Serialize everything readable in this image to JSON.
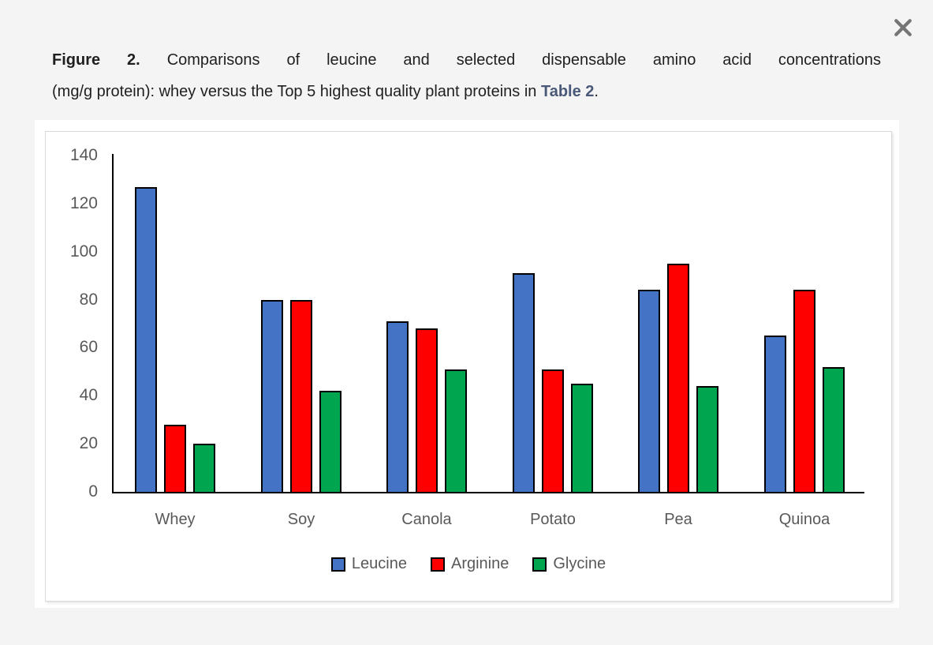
{
  "caption": {
    "label": "Figure 2.",
    "line1_rest": "Comparisons of leucine and selected dispensable amino acid concentrations",
    "line2_prefix": "(mg/g protein): whey versus the Top 5 highest quality plant proteins in ",
    "link_text": "Table 2",
    "suffix": "."
  },
  "icons": {
    "close": "✕"
  },
  "colors": {
    "page_bg": "#F4F4F5",
    "panel_bg": "#FFFFFF",
    "chart_border": "#D9D9D9",
    "caption_text": "#1F1F1F",
    "link_text_color": "#4A5878",
    "close_icon": "#757575",
    "axis_line": "#000000",
    "tick_label": "#595959",
    "bar_border": "#000000"
  },
  "chart_data": {
    "type": "bar",
    "title": "",
    "xlabel": "",
    "ylabel": "",
    "categories": [
      "Whey",
      "Soy",
      "Canola",
      "Potato",
      "Pea",
      "Quinoa"
    ],
    "series": [
      {
        "name": "Leucine",
        "color": "#4472C4",
        "values": [
          127,
          80,
          71,
          91,
          84,
          65
        ]
      },
      {
        "name": "Arginine",
        "color": "#FF0000",
        "values": [
          28,
          80,
          68,
          51,
          95,
          84
        ]
      },
      {
        "name": "Glycine",
        "color": "#00A550",
        "values": [
          20,
          42,
          51,
          45,
          44,
          52
        ]
      }
    ],
    "ylim": [
      0,
      140
    ],
    "yticks": [
      0,
      20,
      40,
      60,
      80,
      100,
      120,
      140
    ],
    "grid": false,
    "legend_position": "bottom",
    "legend_labels": [
      "Leucine",
      "Arginine",
      "Glycine"
    ]
  }
}
